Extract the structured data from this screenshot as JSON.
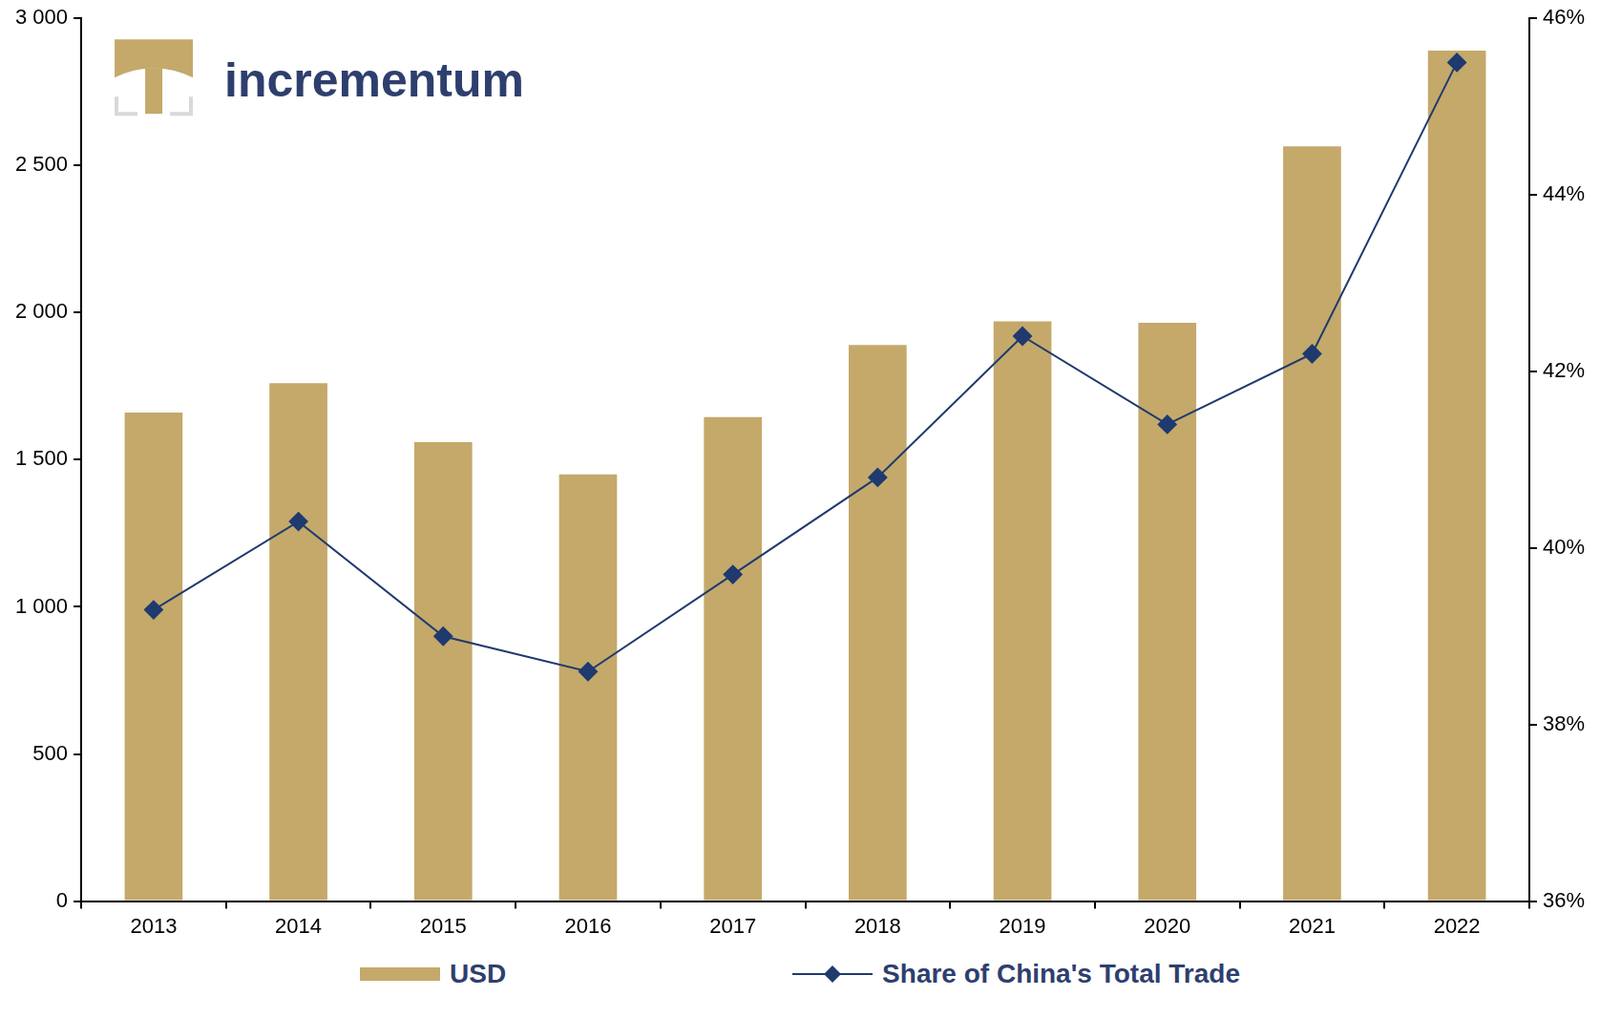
{
  "chart_data": {
    "type": "bar",
    "annotations": [
      "incrementum"
    ],
    "categories": [
      "2013",
      "2014",
      "2015",
      "2016",
      "2017",
      "2018",
      "2019",
      "2020",
      "2021",
      "2022"
    ],
    "series": [
      {
        "name": "USD",
        "type": "bar",
        "color": "#c4a96b",
        "values": [
          1660,
          1760,
          1560,
          1450,
          1645,
          1890,
          1970,
          1965,
          2565,
          2890
        ]
      },
      {
        "name": "Share of China's Total Trade",
        "type": "line",
        "axis": "y2",
        "color": "#1f3a6e",
        "marker": "diamond",
        "values": [
          39.3,
          40.3,
          39.0,
          38.6,
          39.7,
          40.8,
          42.4,
          41.4,
          42.2,
          45.5
        ]
      }
    ],
    "ylim": [
      0,
      3000
    ],
    "yticks": [
      0,
      500,
      {
        "value": 1000,
        "label": "1 000"
      },
      {
        "value": 1500,
        "label": "1 500"
      },
      {
        "value": 2000,
        "label": "2 000"
      },
      {
        "value": 2500,
        "label": "2 500"
      },
      {
        "value": 3000,
        "label": "3 000"
      }
    ],
    "y2lim": [
      36,
      46
    ],
    "y2ticks": [
      {
        "value": 36,
        "label": "36%"
      },
      {
        "value": 38,
        "label": "38%"
      },
      {
        "value": 40,
        "label": "40%"
      },
      {
        "value": 42,
        "label": "42%"
      },
      {
        "value": 44,
        "label": "44%"
      },
      {
        "value": 46,
        "label": "46%"
      }
    ],
    "grid": false,
    "legend": "bottom"
  }
}
